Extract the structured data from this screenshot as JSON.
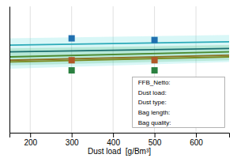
{
  "chart_data": {
    "type": "line",
    "xlabel": "Dust load  [g/Bm³]",
    "xlim": [
      150,
      680
    ],
    "xticks": [
      200,
      300,
      400,
      500,
      600
    ],
    "ylim": [
      0.2,
      0.95
    ],
    "yticks": [],
    "tick_labels": "x",
    "grid": true,
    "series": [
      {
        "type": "area",
        "color": "#40d8d8",
        "x": [
          150,
          680
        ],
        "low": [
          0.58,
          0.62
        ],
        "high": [
          0.76,
          0.78
        ]
      },
      {
        "type": "area",
        "color": "#30b060",
        "x": [
          150,
          680
        ],
        "low": [
          0.6,
          0.63
        ],
        "high": [
          0.7,
          0.72
        ]
      },
      {
        "type": "line",
        "color": "#2baab8",
        "x": [
          150,
          680
        ],
        "values": [
          0.72,
          0.74
        ]
      },
      {
        "type": "line",
        "color": "#1a6e6e",
        "x": [
          150,
          680
        ],
        "values": [
          0.68,
          0.7
        ]
      },
      {
        "type": "line",
        "color": "#4a8a30",
        "x": [
          150,
          680
        ],
        "values": [
          0.65,
          0.68
        ]
      },
      {
        "type": "line",
        "color": "#8b7020",
        "x": [
          150,
          680
        ],
        "values": [
          0.63,
          0.66
        ]
      },
      {
        "type": "line",
        "color": "#7a8a20",
        "x": [
          150,
          680
        ],
        "values": [
          0.62,
          0.65
        ]
      },
      {
        "type": "scatter",
        "marker": "square",
        "x": [
          300,
          300,
          300,
          500,
          500,
          500
        ],
        "values": [
          0.76,
          0.63,
          0.57,
          0.75,
          0.63,
          0.57
        ],
        "colors": [
          "#2070b0",
          "#b05828",
          "#2a8040",
          "#2070b0",
          "#b05828",
          "#2a8040"
        ]
      }
    ],
    "annotations": [
      "FFB_Netto:",
      "Dust load:",
      "Dust type:",
      "Bag length:",
      "Bag quality:"
    ]
  }
}
